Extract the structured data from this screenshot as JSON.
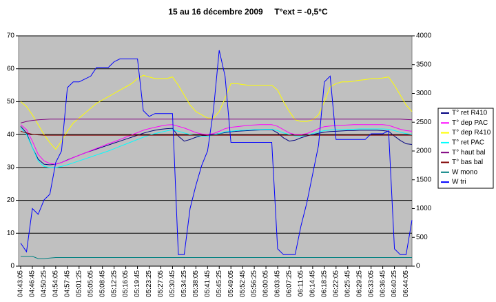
{
  "chart_data": {
    "type": "line",
    "title": "15 au 16 décembre 2009     T°ext = -0,5°C",
    "categories": [
      "04:43:05",
      null,
      "04:46:45",
      null,
      "04:50:25",
      null,
      "04:54:05",
      null,
      "04:57:45",
      null,
      "05:01:25",
      null,
      "05:05:05",
      null,
      "05:08:45",
      null,
      "05:12:25",
      null,
      "05:16:05",
      null,
      "05:19:45",
      null,
      "05:23:25",
      null,
      "05:27:05",
      null,
      "05:30:45",
      null,
      "05:34:25",
      null,
      "05:38:05",
      null,
      "05:41:45",
      null,
      "05:45:25",
      null,
      "05:49:05",
      null,
      "05:52:45",
      null,
      "05:56:25",
      null,
      "06:00:05",
      null,
      "06:03:45",
      null,
      "06:07:25",
      null,
      "06:11:05",
      null,
      "06:14:45",
      null,
      "06:18:25",
      null,
      "06:22:05",
      null,
      "06:25:45",
      null,
      "06:29:25",
      null,
      "06:33:05",
      null,
      "06:36:45",
      null,
      "06:40:25",
      null,
      "06:44:05",
      null
    ],
    "ylim": [
      0,
      70
    ],
    "yticks": [
      0,
      10,
      20,
      30,
      40,
      50,
      60,
      70
    ],
    "y2lim": [
      0,
      4000
    ],
    "y2ticks": [
      0,
      500,
      1000,
      1500,
      2000,
      2500,
      3000,
      3500,
      4000
    ],
    "grid": true,
    "legend": "right",
    "series": [
      {
        "name": "T° ret R410",
        "color": "#000080",
        "values": [
          42.5,
          40.5,
          36,
          32.5,
          31,
          30.8,
          31,
          31.5,
          32.3,
          33,
          33.7,
          34.4,
          35,
          35.6,
          36.2,
          36.8,
          37.4,
          38,
          38.6,
          39.2,
          39.8,
          40.4,
          40.9,
          41.3,
          41.6,
          41.8,
          41.9,
          39.5,
          38,
          38.5,
          39.2,
          39.6,
          39.8,
          40,
          40.3,
          40.6,
          40.8,
          41,
          41.1,
          41.2,
          41.3,
          41.4,
          41.5,
          41.5,
          40.5,
          39,
          38,
          38.3,
          39,
          39.6,
          40,
          40.4,
          40.7,
          40.9,
          41,
          41.1,
          41.2,
          41.2,
          41.3,
          41.3,
          41.3,
          41.3,
          41.2,
          41,
          39.5,
          38.2,
          37.2,
          37
        ]
      },
      {
        "name": "T° dep PAC",
        "color": "#ff00ff",
        "values": [
          43,
          41.5,
          38,
          34,
          32,
          31.2,
          31,
          31.5,
          32.2,
          33,
          33.7,
          34.4,
          35.1,
          35.8,
          36.5,
          37.2,
          37.8,
          38.5,
          39.2,
          39.9,
          40.6,
          41.3,
          41.8,
          42.2,
          42.6,
          42.9,
          43,
          42.5,
          42,
          41.3,
          40.6,
          40.2,
          40,
          40.3,
          41,
          41.8,
          42.2,
          42.4,
          42.6,
          42.8,
          42.9,
          43,
          43,
          43,
          42.5,
          41.5,
          40.5,
          40,
          40,
          40.3,
          41,
          41.8,
          42.4,
          42.6,
          42.7,
          42.8,
          42.9,
          43,
          43,
          43,
          43,
          43,
          43,
          42.8,
          42.2,
          41.6,
          41.2,
          41
        ]
      },
      {
        "name": "T° dep R410",
        "color": "#ffff00",
        "values": [
          50,
          48.5,
          46,
          43,
          40,
          37.5,
          35.5,
          38,
          41,
          43.5,
          45,
          46.5,
          48,
          49.5,
          50.5,
          51.5,
          52.5,
          53.5,
          54.5,
          55.5,
          57,
          58,
          57.5,
          57,
          57,
          57,
          57.5,
          55,
          52,
          49,
          47,
          46,
          45,
          45,
          47,
          51,
          55.5,
          55.5,
          55.2,
          55,
          55,
          55,
          55,
          55,
          53.5,
          50,
          47,
          44.5,
          44,
          44,
          44.5,
          46,
          50,
          54.5,
          55.5,
          56,
          56,
          56.2,
          56.5,
          56.7,
          57,
          57,
          57.2,
          57.5,
          55,
          52,
          49,
          47
        ]
      },
      {
        "name": "T° ret PAC",
        "color": "#00ffff",
        "values": [
          42,
          40,
          36,
          32,
          30.3,
          30,
          30,
          30.3,
          30.8,
          31.4,
          32,
          32.6,
          33.2,
          33.8,
          34.4,
          35,
          35.7,
          36.4,
          37.1,
          37.8,
          38.5,
          39.2,
          39.8,
          40.3,
          40.7,
          41.1,
          41.5,
          41,
          40.5,
          40,
          39.7,
          39.5,
          39.5,
          39.8,
          40.3,
          40.8,
          41,
          41.2,
          41.3,
          41.4,
          41.5,
          41.5,
          41.6,
          41.6,
          41.2,
          40.5,
          40,
          39.6,
          39.5,
          39.8,
          40.3,
          40.8,
          41.2,
          41.4,
          41.5,
          41.5,
          41.6,
          41.6,
          41.7,
          41.7,
          41.7,
          41.7,
          41.7,
          41.6,
          41.2,
          40.7,
          40.3,
          40
        ]
      },
      {
        "name": "T° haut bal",
        "color": "#800080",
        "values": [
          43.5,
          44,
          44.3,
          44.5,
          44.6,
          44.7,
          44.7,
          44.7,
          44.7,
          44.7,
          44.7,
          44.7,
          44.7,
          44.7,
          44.7,
          44.7,
          44.7,
          44.7,
          44.7,
          44.7,
          44.7,
          44.7,
          44.7,
          44.7,
          44.7,
          44.7,
          44.7,
          44.7,
          44.7,
          44.7,
          44.7,
          44.7,
          44.7,
          44.7,
          44.7,
          44.7,
          44.7,
          44.7,
          44.7,
          44.7,
          44.7,
          44.7,
          44.7,
          44.7,
          44.7,
          44.7,
          44.7,
          44.7,
          44.7,
          44.7,
          44.7,
          44.7,
          44.7,
          44.7,
          44.7,
          44.7,
          44.7,
          44.7,
          44.7,
          44.7,
          44.7,
          44.7,
          44.7,
          44.7,
          44.7,
          44.7,
          44.6,
          44.5
        ]
      },
      {
        "name": "T° bas bal",
        "color": "#800000",
        "values": [
          41,
          40.5,
          40.1,
          39.9,
          39.8,
          39.8,
          39.8,
          39.8,
          39.8,
          39.8,
          39.8,
          39.8,
          39.8,
          39.8,
          39.8,
          39.8,
          39.8,
          39.8,
          39.8,
          39.8,
          39.8,
          39.8,
          39.8,
          39.8,
          39.8,
          39.8,
          39.8,
          39.8,
          39.8,
          39.8,
          39.8,
          39.8,
          39.8,
          39.8,
          39.8,
          39.8,
          39.8,
          39.8,
          39.8,
          39.8,
          39.8,
          39.8,
          39.8,
          39.8,
          39.8,
          39.8,
          39.8,
          39.8,
          39.8,
          39.8,
          39.8,
          39.8,
          39.8,
          39.8,
          39.8,
          39.8,
          39.8,
          39.8,
          39.8,
          39.8,
          39.8,
          39.8,
          39.8,
          39.8,
          39.8,
          39.8,
          39.8,
          39.8
        ]
      },
      {
        "name": "W mono",
        "color": "#008080",
        "axis": "y2",
        "values": [
          170,
          170,
          170,
          130,
          130,
          140,
          150,
          150,
          150,
          150,
          150,
          150,
          150,
          150,
          150,
          150,
          150,
          150,
          150,
          150,
          150,
          150,
          150,
          150,
          150,
          150,
          150,
          150,
          150,
          150,
          150,
          150,
          150,
          150,
          150,
          150,
          150,
          150,
          150,
          150,
          150,
          150,
          150,
          150,
          150,
          150,
          150,
          150,
          150,
          150,
          150,
          150,
          150,
          150,
          150,
          150,
          150,
          150,
          150,
          150,
          150,
          150,
          150,
          150,
          150,
          150,
          150,
          150
        ]
      },
      {
        "name": "W tri",
        "color": "#0000ff",
        "axis": "y2",
        "values": [
          400,
          250,
          1000,
          900,
          1150,
          1250,
          1800,
          2000,
          3100,
          3200,
          3200,
          3250,
          3300,
          3450,
          3450,
          3450,
          3550,
          3600,
          3600,
          3600,
          3600,
          2700,
          2600,
          2650,
          2650,
          2650,
          2650,
          200,
          200,
          1000,
          1400,
          1750,
          2000,
          2700,
          3750,
          3300,
          2150,
          2150,
          2150,
          2150,
          2150,
          2150,
          2150,
          2150,
          300,
          200,
          200,
          200,
          700,
          1100,
          1600,
          2100,
          3200,
          3300,
          2200,
          2200,
          2200,
          2200,
          2200,
          2200,
          2300,
          2300,
          2300,
          2350,
          300,
          200,
          200,
          800
        ]
      }
    ]
  }
}
